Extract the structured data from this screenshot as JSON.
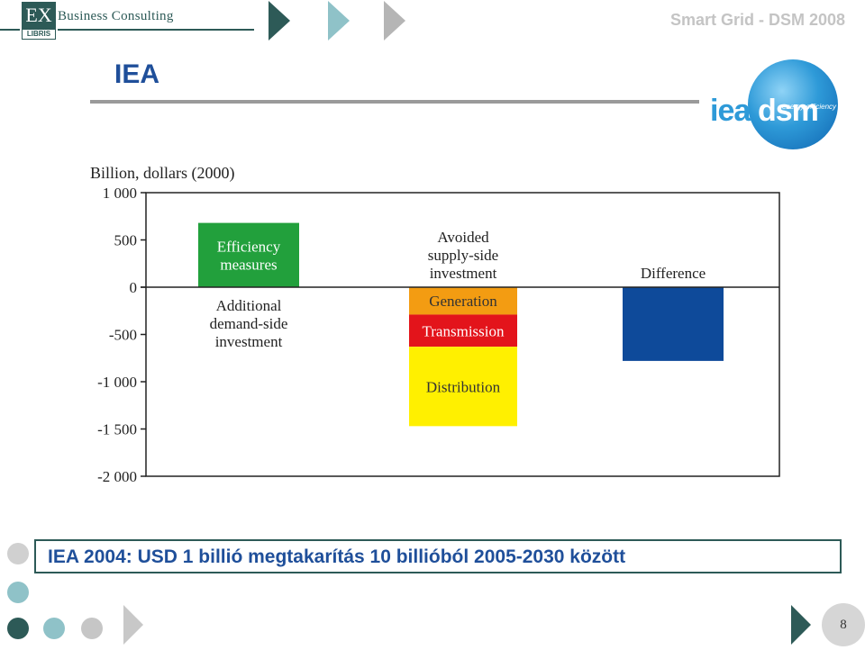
{
  "header": {
    "logo_mark": "EX",
    "logo_sub": "LIBRIS",
    "logo_name": "Business Consulting",
    "top_title": "Smart Grid - DSM 2008",
    "page_title": "IEA"
  },
  "iea_logo": {
    "part1": "iea",
    "part2": "dsm",
    "tagline": "energy efficiency"
  },
  "chart_data": {
    "type": "bar",
    "ylabel": "Billion, dollars (2000)",
    "ylim": [
      -2000,
      1000
    ],
    "yticks": [
      1000,
      500,
      0,
      -500,
      -1000,
      -1500,
      -2000
    ],
    "ytick_labels": [
      "1 000",
      "500",
      "0",
      "-500",
      "-1 000",
      "-1 500",
      "-2 000"
    ],
    "bars": [
      {
        "label": "Efficiency measures",
        "from": 0,
        "to": 680,
        "color": "#22a03c",
        "label_color": "#ffffff",
        "column": 0
      },
      {
        "label": "Generation",
        "from": 0,
        "to": -290,
        "color": "#f39c12",
        "label_color": "#333333",
        "column": 1
      },
      {
        "label": "Transmission",
        "from": -290,
        "to": -630,
        "color": "#e3141b",
        "label_color": "#ffffff",
        "column": 1
      },
      {
        "label": "Distribution",
        "from": -630,
        "to": -1470,
        "color": "#fff000",
        "label_color": "#333333",
        "column": 1
      },
      {
        "label": "",
        "from": 0,
        "to": -780,
        "color": "#0e4a9a",
        "label_color": "#ffffff",
        "column": 2
      }
    ],
    "annotations": [
      {
        "text": "Additional demand-side investment",
        "lines": [
          "Additional",
          "demand-side",
          "investment"
        ],
        "column": 0,
        "position": "below-zero"
      },
      {
        "text": "Avoided supply-side investment",
        "lines": [
          "Avoided",
          "supply-side",
          "investment"
        ],
        "column": 1,
        "position": "above-zero"
      },
      {
        "text": "Difference",
        "lines": [
          "Difference"
        ],
        "column": 2,
        "position": "above-zero"
      }
    ],
    "grid": false,
    "legend": "none"
  },
  "caption": "IEA 2004: USD 1 billió megtakarítás 10 billióból 2005-2030 között",
  "footer": {
    "page_number": "8"
  }
}
